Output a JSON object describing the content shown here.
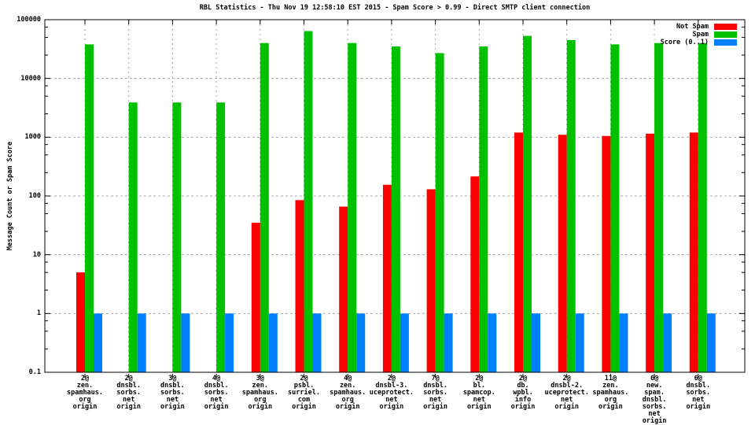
{
  "title": "RBL Statistics - Thu Nov 19 12:58:10 EST 2015 - Spam Score > 0.99 - Direct SMTP client connection",
  "y_axis": {
    "label": "Message Count or Spam Score",
    "tick_labels": [
      "100000",
      "10000",
      "1000",
      "100",
      "10",
      "1",
      "0.1"
    ]
  },
  "legend": {
    "entries": [
      {
        "label": "Not Spam",
        "color": "#ff0000"
      },
      {
        "label": "Spam",
        "color": "#00c000"
      },
      {
        "label": "Score (0..1)",
        "color": "#0080ff"
      }
    ]
  },
  "chart_data": {
    "type": "bar",
    "y_scale": "log",
    "ylim": [
      0.1,
      100000
    ],
    "grid": true,
    "grid_color": "#a8a8a8",
    "legend_position": "top-right",
    "title": "RBL Statistics - Thu Nov 19 12:58:10 EST 2015 - Spam Score > 0.99 - Direct SMTP client connection",
    "ylabel": "Message Count or Spam Score",
    "categories": [
      "2@ zen.spamhaus.org origin",
      "2@ dnsbl.sorbs.net origin",
      "3@ dnsbl.sorbs.net origin",
      "4@ dnsbl.sorbs.net origin",
      "3@ zen.spamhaus.org origin",
      "2@ psbl.surriel.com origin",
      "4@ zen.spamhaus.org origin",
      "2@ dnsbl-3.uceprotect.net origin",
      "7@ dnsbl.sorbs.net origin",
      "2@ bl.spamcop.net origin",
      "2@ db.wpbl.info origin",
      "2@ dnsbl-2.uceprotect.net origin",
      "11@ zen.spamhaus.org origin",
      "6@ new.spam.dnsbl.sorbs.net origin",
      "6@ dnsbl.sorbs.net origin"
    ],
    "category_lines": [
      [
        "2@",
        "zen.",
        "spamhaus.",
        "org",
        "origin"
      ],
      [
        "2@",
        "dnsbl.",
        "sorbs.",
        "net",
        "origin"
      ],
      [
        "3@",
        "dnsbl.",
        "sorbs.",
        "net",
        "origin"
      ],
      [
        "4@",
        "dnsbl.",
        "sorbs.",
        "net",
        "origin"
      ],
      [
        "3@",
        "zen.",
        "spamhaus.",
        "org",
        "origin"
      ],
      [
        "2@",
        "psbl.",
        "surriel.",
        "com",
        "origin"
      ],
      [
        "4@",
        "zen.",
        "spamhaus.",
        "org",
        "origin"
      ],
      [
        "2@",
        "dnsbl-3.",
        "uceprotect.",
        "net",
        "origin"
      ],
      [
        "7@",
        "dnsbl.",
        "sorbs.",
        "net",
        "origin"
      ],
      [
        "2@",
        "bl.",
        "spamcop.",
        "net",
        "origin"
      ],
      [
        "2@",
        "db.",
        "wpbl.",
        "info",
        "origin"
      ],
      [
        "2@",
        "dnsbl-2.",
        "uceprotect.",
        "net",
        "origin"
      ],
      [
        "11@",
        "zen.",
        "spamhaus.",
        "org",
        "origin"
      ],
      [
        "6@",
        "new.",
        "spam.",
        "dnsbl.",
        "sorbs.",
        "net",
        "origin"
      ],
      [
        "6@",
        "dnsbl.",
        "sorbs.",
        "net",
        "origin"
      ]
    ],
    "series": [
      {
        "name": "Not Spam",
        "color": "#ff0000",
        "values": [
          5,
          0,
          0,
          0,
          35,
          85,
          66,
          155,
          130,
          215,
          1200,
          1100,
          1050,
          1150,
          1200
        ]
      },
      {
        "name": "Spam",
        "color": "#00c000",
        "values": [
          38000,
          3900,
          3900,
          3900,
          40000,
          64000,
          40000,
          35000,
          27000,
          35000,
          53000,
          45000,
          38000,
          40000,
          40000
        ]
      },
      {
        "name": "Score (0..1)",
        "color": "#0080ff",
        "values": [
          1,
          1,
          1,
          1,
          1,
          1,
          1,
          1,
          1,
          1,
          1,
          1,
          1,
          1,
          1
        ]
      }
    ]
  }
}
